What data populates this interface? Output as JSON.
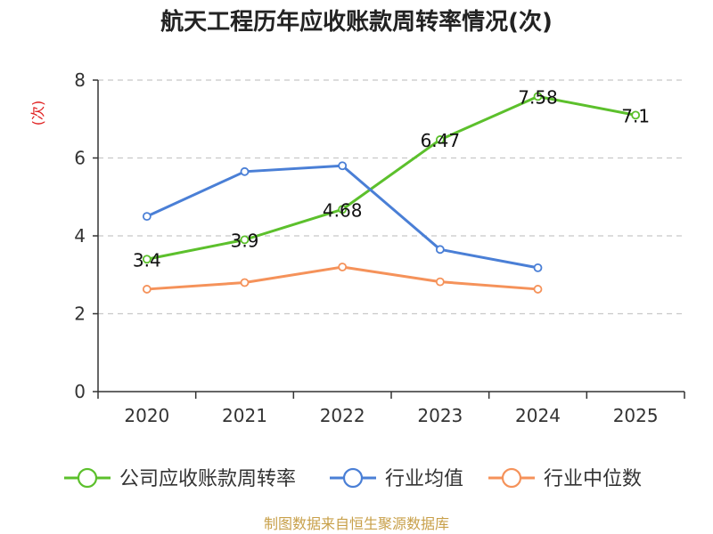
{
  "chart_data": {
    "type": "line",
    "title": "航天工程历年应收账款周转率情况(次)",
    "ylabel": "(次)",
    "xlabel": "",
    "categories": [
      "2020",
      "2021",
      "2022",
      "2023",
      "2024",
      "2025"
    ],
    "ylim": [
      0,
      8
    ],
    "yticks": [
      0,
      2,
      4,
      6,
      8
    ],
    "grid": true,
    "legend_position": "bottom",
    "series": [
      {
        "name": "公司应收账款周转率",
        "color": "#5cc02c",
        "values": [
          3.4,
          3.9,
          4.68,
          6.47,
          7.58,
          7.1
        ],
        "labels": [
          "3.4",
          "3.9",
          "4.68",
          "6.47",
          "7.58",
          "7.1"
        ]
      },
      {
        "name": "行业均值",
        "color": "#4a7fd6",
        "values": [
          4.5,
          5.65,
          5.8,
          3.65,
          3.18,
          null
        ]
      },
      {
        "name": "行业中位数",
        "color": "#f5925a",
        "values": [
          2.63,
          2.8,
          3.2,
          2.82,
          2.63,
          null
        ]
      }
    ]
  },
  "source": "制图数据来自恒生聚源数据库"
}
